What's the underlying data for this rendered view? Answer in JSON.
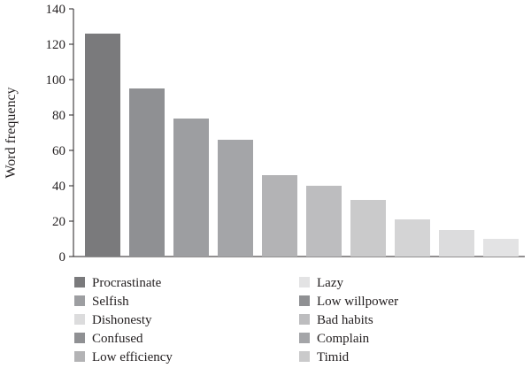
{
  "chart_data": {
    "type": "bar",
    "ylabel": "Word frequency",
    "xlabel": "",
    "ylim": [
      0,
      140
    ],
    "yticks": [
      0,
      20,
      40,
      60,
      80,
      100,
      120,
      140
    ],
    "grid": false,
    "legend_position": "bottom",
    "categories": [
      "Procrastinate",
      "Selfish",
      "Dishonesty",
      "Confused",
      "Low efficiency",
      "Lazy",
      "Low willpower",
      "Bad habits",
      "Complain",
      "Timid"
    ],
    "values": [
      126,
      95,
      78,
      66,
      46,
      40,
      32,
      21,
      15,
      10
    ],
    "colors": [
      "#7a7a7c",
      "#8f9093",
      "#9d9ea1",
      "#a4a5a8",
      "#b3b3b5",
      "#bdbdbf",
      "#cacacb",
      "#d4d4d5",
      "#dcdcdd",
      "#e3e3e4"
    ],
    "legend": [
      {
        "label": "Procrastinate",
        "color": "#7a7a7c"
      },
      {
        "label": "Selfish",
        "color": "#9d9ea1"
      },
      {
        "label": "Dishonesty",
        "color": "#dcdcdd"
      },
      {
        "label": "Confused",
        "color": "#8f9093"
      },
      {
        "label": "Low efficiency",
        "color": "#b3b3b5"
      },
      {
        "label": "Lazy",
        "color": "#e3e3e4"
      },
      {
        "label": "Low willpower",
        "color": "#8f9093"
      },
      {
        "label": "Bad habits",
        "color": "#bdbdbf"
      },
      {
        "label": "Complain",
        "color": "#a4a5a8"
      },
      {
        "label": "Timid",
        "color": "#cacacb"
      }
    ]
  }
}
